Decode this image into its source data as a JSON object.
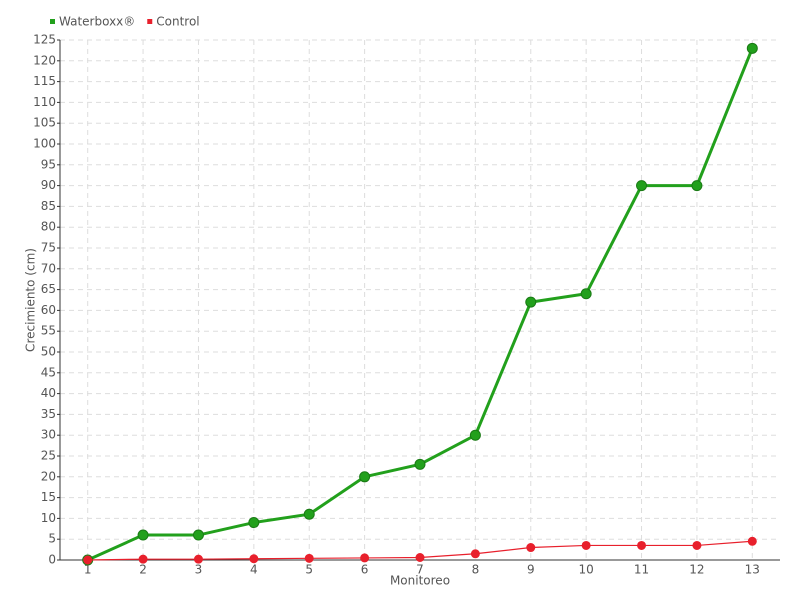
{
  "chart_data": {
    "type": "line",
    "x_label": "Monitoreo",
    "y_label": "Crecimiento (cm)",
    "categories": [
      "1",
      "2",
      "3",
      "4",
      "5",
      "6",
      "7",
      "8",
      "9",
      "10",
      "11",
      "12",
      "13"
    ],
    "series": [
      {
        "name": "Waterboxx®",
        "color": "#22a01c",
        "values": [
          0,
          6,
          6,
          9,
          11,
          20,
          23,
          30,
          62,
          64,
          90,
          90,
          123
        ]
      },
      {
        "name": "Control",
        "color": "#e8202c",
        "values": [
          0,
          0.2,
          0.2,
          0.3,
          0.4,
          0.5,
          0.6,
          1.5,
          3,
          3.5,
          3.5,
          3.5,
          4.5
        ]
      }
    ],
    "ylim": [
      0,
      125
    ],
    "yticks": [
      0,
      5,
      10,
      15,
      20,
      25,
      30,
      35,
      40,
      45,
      50,
      55,
      60,
      65,
      70,
      75,
      80,
      85,
      90,
      95,
      100,
      105,
      110,
      115,
      120,
      125
    ],
    "grid": true,
    "legend": "top-left"
  }
}
